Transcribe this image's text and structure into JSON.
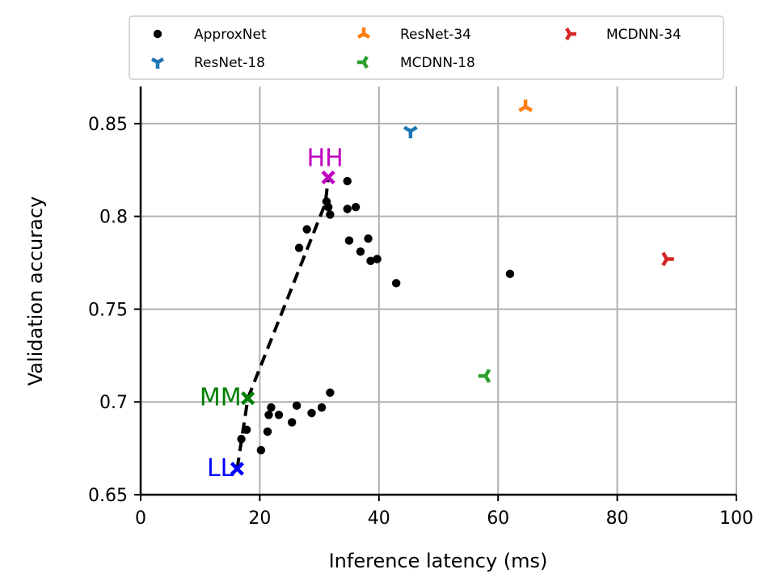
{
  "chart_data": {
    "type": "scatter",
    "xlabel": "Inference latency (ms)",
    "ylabel": "Validation accuracy",
    "xlim": [
      0,
      100
    ],
    "ylim": [
      0.65,
      0.87
    ],
    "x_ticks": [
      0,
      20,
      40,
      60,
      80,
      100
    ],
    "x_tick_labels": [
      "0",
      "20",
      "40",
      "60",
      "80",
      "100"
    ],
    "y_ticks": [
      0.65,
      0.7,
      0.75,
      0.8,
      0.85
    ],
    "y_tick_labels": [
      "0.65",
      "0.7",
      "0.75",
      "0.8",
      "0.85"
    ],
    "grid": true,
    "legend_position": "top",
    "series": [
      {
        "name": "ApproxNet",
        "marker": "dot",
        "color": "#000000",
        "points": [
          [
            34.7,
            0.819
          ],
          [
            31.2,
            0.808
          ],
          [
            31.5,
            0.805
          ],
          [
            31.8,
            0.801
          ],
          [
            34.7,
            0.804
          ],
          [
            36.1,
            0.805
          ],
          [
            27.9,
            0.793
          ],
          [
            26.6,
            0.783
          ],
          [
            35.0,
            0.787
          ],
          [
            38.2,
            0.788
          ],
          [
            36.9,
            0.781
          ],
          [
            38.6,
            0.776
          ],
          [
            39.7,
            0.777
          ],
          [
            42.9,
            0.764
          ],
          [
            62.0,
            0.769
          ],
          [
            31.8,
            0.705
          ],
          [
            30.4,
            0.697
          ],
          [
            28.7,
            0.694
          ],
          [
            26.2,
            0.698
          ],
          [
            25.4,
            0.689
          ],
          [
            23.2,
            0.693
          ],
          [
            21.9,
            0.697
          ],
          [
            21.5,
            0.693
          ],
          [
            21.3,
            0.684
          ],
          [
            20.2,
            0.674
          ],
          [
            17.8,
            0.685
          ],
          [
            16.9,
            0.68
          ]
        ]
      },
      {
        "name": "ResNet-18",
        "marker": "tri_down",
        "color": "#1f77b4",
        "points": [
          [
            45.3,
            0.846
          ]
        ]
      },
      {
        "name": "ResNet-34",
        "marker": "tri_up",
        "color": "#ff7f0e",
        "points": [
          [
            64.6,
            0.859
          ]
        ]
      },
      {
        "name": "MCDNN-18",
        "marker": "tri_left",
        "color": "#2ca02c",
        "points": [
          [
            57.9,
            0.714
          ]
        ]
      },
      {
        "name": "MCDNN-34",
        "marker": "tri_right",
        "color": "#d62728",
        "points": [
          [
            88.3,
            0.777
          ]
        ]
      }
    ],
    "pareto_line": {
      "style": "dashed",
      "color": "#000000",
      "points": [
        [
          16.2,
          0.664
        ],
        [
          18.0,
          0.702
        ],
        [
          31.0,
          0.807
        ],
        [
          31.5,
          0.821
        ]
      ]
    },
    "annotations": [
      {
        "text": "HH",
        "color": "#bf00bf",
        "x": 31.5,
        "y": 0.821
      },
      {
        "text": "MM",
        "color": "#008000",
        "x": 18.0,
        "y": 0.702
      },
      {
        "text": "LL",
        "color": "#0000ff",
        "x": 16.2,
        "y": 0.664
      }
    ]
  }
}
